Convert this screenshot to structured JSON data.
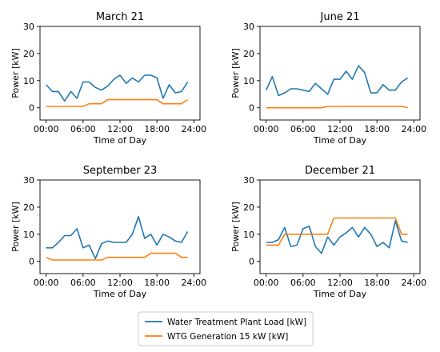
{
  "colors": {
    "load": "#1f77b4",
    "wtg": "#ff7f0e",
    "axes": "#000000",
    "legend_border": "#cccccc"
  },
  "legend": {
    "position": "bottom-center",
    "entries": [
      "Water Treatment Plant Load [kW]",
      "WTG Generation 15 kW [kW]"
    ]
  },
  "chart_data": [
    {
      "type": "line",
      "title": "March 21",
      "xlabel": "Time of Day",
      "ylabel": "Power [kW]",
      "xlim": [
        -1,
        25
      ],
      "ylim": [
        -4.5,
        30
      ],
      "xtick_values": [
        0,
        6,
        12,
        18,
        24
      ],
      "xtick_labels": [
        "00:00",
        "06:00",
        "12:00",
        "18:00",
        "24:00"
      ],
      "ytick_values": [
        0,
        10,
        20,
        30
      ],
      "ytick_labels": [
        "0",
        "10",
        "20",
        "30"
      ],
      "series": [
        {
          "name": "Water Treatment Plant Load [kW]",
          "x": [
            0,
            1,
            2,
            3,
            4,
            5,
            6,
            7,
            8,
            9,
            10,
            11,
            12,
            13,
            14,
            15,
            16,
            17,
            18,
            19,
            20,
            21,
            22,
            23,
            24
          ],
          "values": [
            8.5,
            6,
            6,
            2.5,
            6,
            3.5,
            9.5,
            9.5,
            7.5,
            6.5,
            8,
            10.5,
            12,
            9,
            11,
            9.5,
            12,
            12,
            11,
            3.5,
            8.5,
            5.5,
            6,
            9.5,
            null
          ]
        },
        {
          "name": "WTG Generation 15 kW [kW]",
          "x": [
            0,
            1,
            2,
            3,
            4,
            5,
            6,
            7,
            8,
            9,
            10,
            11,
            12,
            13,
            14,
            15,
            16,
            17,
            18,
            19,
            20,
            21,
            22,
            23,
            24
          ],
          "values": [
            0.5,
            0.5,
            0.5,
            0.5,
            0.5,
            0.5,
            0.5,
            1.5,
            1.5,
            1.5,
            3,
            3,
            3,
            3,
            3,
            3,
            3,
            3,
            3,
            1.5,
            1.5,
            1.5,
            1.5,
            3,
            null
          ]
        }
      ]
    },
    {
      "type": "line",
      "title": "June 21",
      "xlabel": "Time of Day",
      "ylabel": "Power [kW]",
      "xlim": [
        -1,
        25
      ],
      "ylim": [
        -4.5,
        30
      ],
      "xtick_values": [
        0,
        6,
        12,
        18,
        24
      ],
      "xtick_labels": [
        "00:00",
        "06:00",
        "12:00",
        "18:00",
        "24:00"
      ],
      "ytick_values": [
        0,
        10,
        20,
        30
      ],
      "ytick_labels": [
        "0",
        "10",
        "20",
        "30"
      ],
      "series": [
        {
          "name": "Water Treatment Plant Load [kW]",
          "x": [
            0,
            1,
            2,
            3,
            4,
            5,
            6,
            7,
            8,
            9,
            10,
            11,
            12,
            13,
            14,
            15,
            16,
            17,
            18,
            19,
            20,
            21,
            22,
            23,
            24
          ],
          "values": [
            6.5,
            11.5,
            4.5,
            5.5,
            7,
            7,
            6.5,
            6,
            9,
            7,
            5,
            10.5,
            10.5,
            13.5,
            10.5,
            15.5,
            13,
            5.5,
            5.5,
            8.5,
            6.5,
            6.5,
            9.5,
            11,
            null
          ]
        },
        {
          "name": "WTG Generation 15 kW [kW]",
          "x": [
            0,
            1,
            2,
            3,
            4,
            5,
            6,
            7,
            8,
            9,
            10,
            11,
            12,
            13,
            14,
            15,
            16,
            17,
            18,
            19,
            20,
            21,
            22,
            23,
            24
          ],
          "values": [
            0,
            0,
            0,
            0,
            0,
            0,
            0,
            0,
            0,
            0,
            0.5,
            0.5,
            0.5,
            0.5,
            0.5,
            0.5,
            0.5,
            0.5,
            0.5,
            0.5,
            0.5,
            0.5,
            0.5,
            0,
            null
          ]
        }
      ]
    },
    {
      "type": "line",
      "title": "September 23",
      "xlabel": "Time of Day",
      "ylabel": "Power [kW]",
      "xlim": [
        -1,
        25
      ],
      "ylim": [
        -4.5,
        30
      ],
      "xtick_values": [
        0,
        6,
        12,
        18,
        24
      ],
      "xtick_labels": [
        "00:00",
        "06:00",
        "12:00",
        "18:00",
        "24:00"
      ],
      "ytick_values": [
        0,
        10,
        20,
        30
      ],
      "ytick_labels": [
        "0",
        "10",
        "20",
        "30"
      ],
      "series": [
        {
          "name": "Water Treatment Plant Load [kW]",
          "x": [
            0,
            1,
            2,
            3,
            4,
            5,
            6,
            7,
            8,
            9,
            10,
            11,
            12,
            13,
            14,
            15,
            16,
            17,
            18,
            19,
            20,
            21,
            22,
            23,
            24
          ],
          "values": [
            5,
            5,
            7,
            9.5,
            9.5,
            12,
            5,
            6,
            1,
            6.5,
            7.5,
            7,
            7,
            7,
            10,
            16.5,
            8.5,
            10,
            6,
            10,
            9,
            7.5,
            7,
            11,
            null
          ]
        },
        {
          "name": "WTG Generation 15 kW [kW]",
          "x": [
            0,
            1,
            2,
            3,
            4,
            5,
            6,
            7,
            8,
            9,
            10,
            11,
            12,
            13,
            14,
            15,
            16,
            17,
            18,
            19,
            20,
            21,
            22,
            23,
            24
          ],
          "values": [
            1.5,
            0.5,
            0.5,
            0.5,
            0.5,
            0.5,
            0.5,
            0.5,
            0.5,
            0.5,
            1.5,
            1.5,
            1.5,
            1.5,
            1.5,
            1.5,
            1.5,
            3,
            3,
            3,
            3,
            3,
            1.5,
            1.5,
            null
          ]
        }
      ]
    },
    {
      "type": "line",
      "title": "December 21",
      "xlabel": "Time of Day",
      "ylabel": "Power [kW]",
      "xlim": [
        -1,
        25
      ],
      "ylim": [
        -4.5,
        30
      ],
      "xtick_values": [
        0,
        6,
        12,
        18,
        24
      ],
      "xtick_labels": [
        "00:00",
        "06:00",
        "12:00",
        "18:00",
        "24:00"
      ],
      "ytick_values": [
        0,
        10,
        20,
        30
      ],
      "ytick_labels": [
        "0",
        "10",
        "20",
        "30"
      ],
      "series": [
        {
          "name": "Water Treatment Plant Load [kW]",
          "x": [
            0,
            1,
            2,
            3,
            4,
            5,
            6,
            7,
            8,
            9,
            10,
            11,
            12,
            13,
            14,
            15,
            16,
            17,
            18,
            19,
            20,
            21,
            22,
            23,
            24
          ],
          "values": [
            7,
            7,
            8,
            12.5,
            5.5,
            6,
            12,
            13,
            5.5,
            3,
            9,
            6,
            9,
            10.5,
            12.5,
            9,
            12.5,
            10,
            5.5,
            7,
            5,
            15,
            7.5,
            7,
            null
          ]
        },
        {
          "name": "WTG Generation 15 kW [kW]",
          "x": [
            0,
            1,
            2,
            3,
            4,
            5,
            6,
            7,
            8,
            9,
            10,
            11,
            12,
            13,
            14,
            15,
            16,
            17,
            18,
            19,
            20,
            21,
            22,
            23,
            24
          ],
          "values": [
            6,
            6,
            6,
            10,
            10,
            10,
            10,
            10,
            10,
            10,
            10,
            16,
            16,
            16,
            16,
            16,
            16,
            16,
            16,
            16,
            16,
            16,
            10,
            10,
            null
          ]
        }
      ]
    }
  ]
}
